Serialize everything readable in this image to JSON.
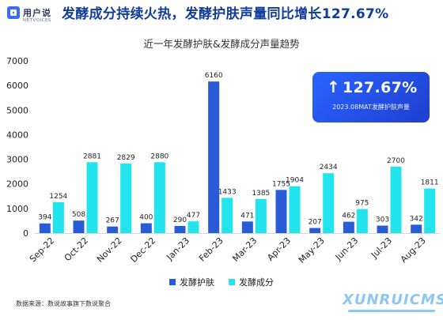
{
  "header": {
    "logo_cn": "用户说",
    "logo_en": "NETVOICES",
    "headline": "发酵成分持续火热，发酵护肤声量同比增长127.67%"
  },
  "callout": {
    "arrow": "↑",
    "value": "127.67%",
    "subtitle": "2023.08MAT发酵护肤声量"
  },
  "footer": {
    "source": "数据来源：数说故事旗下数说聚合",
    "watermark": "XUNRUICMS"
  },
  "colors": {
    "series_skin": "#2a5bd7",
    "series_ingredient": "#22e4ec",
    "headline": "#123c9a",
    "callout": "#2a63ff"
  },
  "chart_data": {
    "type": "bar",
    "title": "近一年发酵护肤&发酵成分声量趋势",
    "categories": [
      "Sep-22",
      "Oct-22",
      "Nov-22",
      "Dec-22",
      "Jan-23",
      "Feb-23",
      "Mar-23",
      "Apr-23",
      "May-23",
      "Jun-23",
      "Jul-23",
      "Aug-23"
    ],
    "series": [
      {
        "name": "发酵护肤",
        "values": [
          394,
          508,
          267,
          400,
          290,
          6160,
          471,
          1755,
          207,
          462,
          303,
          342
        ]
      },
      {
        "name": "发酵成分",
        "values": [
          1254,
          2881,
          2829,
          2880,
          477,
          1433,
          1385,
          1904,
          2434,
          975,
          2700,
          1811
        ]
      }
    ],
    "ylim": [
      0,
      7000
    ],
    "yticks": [
      0,
      1000,
      2000,
      3000,
      4000,
      5000,
      6000,
      7000
    ],
    "grid": false,
    "legend": "bottom",
    "data_labels": true
  }
}
